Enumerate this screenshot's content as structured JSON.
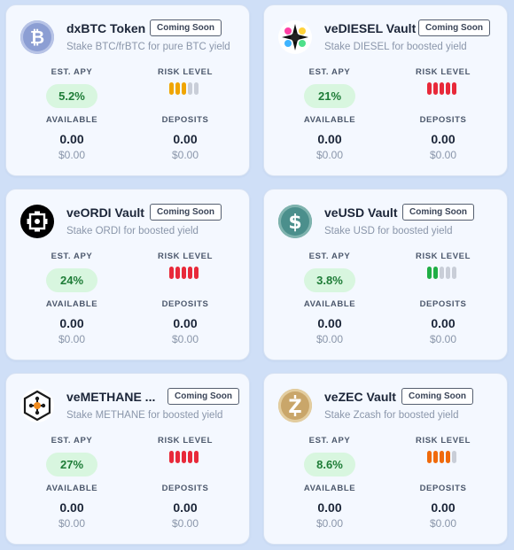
{
  "labels": {
    "badge": "Coming Soon",
    "est_apy": "EST. APY",
    "risk_level": "RISK LEVEL",
    "available": "AVAILABLE",
    "deposits": "DEPOSITS"
  },
  "cards": [
    {
      "title": "dxBTC Token",
      "subtitle": "Stake BTC/frBTC for pure BTC yield",
      "apy": "5.2%",
      "risk_level": 3,
      "risk_color": "#f0a500",
      "available": "0.00",
      "available_usd": "$0.00",
      "deposits": "0.00",
      "deposits_usd": "$0.00",
      "icon": "bitcoin-icon"
    },
    {
      "title": "veDIESEL Vault",
      "subtitle": "Stake DIESEL for boosted yield",
      "apy": "21%",
      "risk_level": 5,
      "risk_color": "#e8293a",
      "available": "0.00",
      "available_usd": "$0.00",
      "deposits": "0.00",
      "deposits_usd": "$0.00",
      "icon": "diesel-icon"
    },
    {
      "title": "veORDI Vault",
      "subtitle": "Stake ORDI for boosted yield",
      "apy": "24%",
      "risk_level": 5,
      "risk_color": "#e8293a",
      "available": "0.00",
      "available_usd": "$0.00",
      "deposits": "0.00",
      "deposits_usd": "$0.00",
      "icon": "ordi-icon"
    },
    {
      "title": "veUSD Vault",
      "subtitle": "Stake USD for boosted yield",
      "apy": "3.8%",
      "risk_level": 2,
      "risk_color": "#1fae45",
      "available": "0.00",
      "available_usd": "$0.00",
      "deposits": "0.00",
      "deposits_usd": "$0.00",
      "icon": "dollar-icon"
    },
    {
      "title": "veMETHANE ...",
      "subtitle": "Stake METHANE for boosted yield",
      "apy": "27%",
      "risk_level": 5,
      "risk_color": "#e8293a",
      "available": "0.00",
      "available_usd": "$0.00",
      "deposits": "0.00",
      "deposits_usd": "$0.00",
      "icon": "methane-icon"
    },
    {
      "title": "veZEC Vault",
      "subtitle": "Stake Zcash for boosted yield",
      "apy": "8.6%",
      "risk_level": 4,
      "risk_color": "#f06a0c",
      "available": "0.00",
      "available_usd": "$0.00",
      "deposits": "0.00",
      "deposits_usd": "$0.00",
      "icon": "zcash-icon"
    }
  ]
}
